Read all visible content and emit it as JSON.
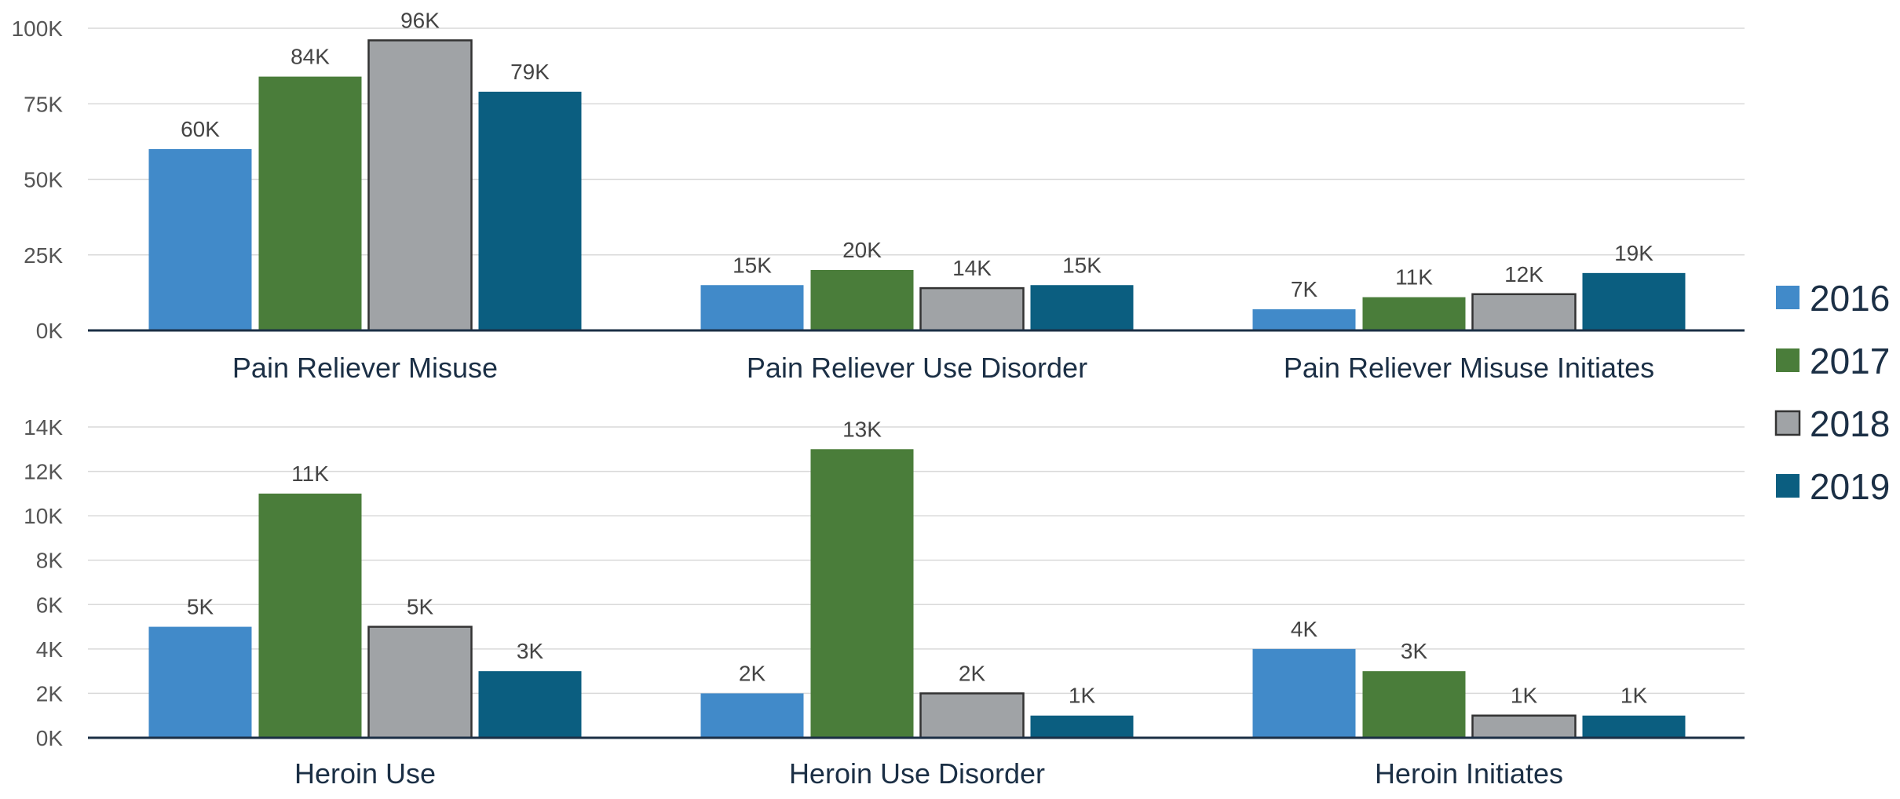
{
  "chart_data": {
    "type": "bar",
    "legend": {
      "placement": "right",
      "series": [
        {
          "name": "2016",
          "color": "#418AC9"
        },
        {
          "name": "2017",
          "color": "#4A7D3A"
        },
        {
          "name": "2018",
          "color": "#A0A3A6"
        },
        {
          "name": "2019",
          "color": "#0B5E80"
        }
      ]
    },
    "grid": true,
    "panels": [
      {
        "ylim": [
          0,
          100000
        ],
        "yticks": [
          0,
          25000,
          50000,
          75000,
          100000
        ],
        "ytick_labels": [
          "0K",
          "25K",
          "50K",
          "75K",
          "100K"
        ],
        "categories": [
          "Pain Reliever Misuse",
          "Pain Reliever Use Disorder",
          "Pain Reliever Misuse Initiates"
        ],
        "values": [
          [
            60000,
            84000,
            96000,
            79000
          ],
          [
            15000,
            20000,
            14000,
            15000
          ],
          [
            7000,
            11000,
            12000,
            19000
          ]
        ],
        "labels": [
          [
            "60K",
            "84K",
            "96K",
            "79K"
          ],
          [
            "15K",
            "20K",
            "14K",
            "15K"
          ],
          [
            "7K",
            "11K",
            "12K",
            "19K"
          ]
        ]
      },
      {
        "ylim": [
          0,
          14000
        ],
        "yticks": [
          0,
          2000,
          4000,
          6000,
          8000,
          10000,
          12000,
          14000
        ],
        "ytick_labels": [
          "0K",
          "2K",
          "4K",
          "6K",
          "8K",
          "10K",
          "12K",
          "14K"
        ],
        "categories": [
          "Heroin Use",
          "Heroin Use Disorder",
          "Heroin Initiates"
        ],
        "values": [
          [
            5000,
            11000,
            5000,
            3000
          ],
          [
            2000,
            13000,
            2000,
            1000
          ],
          [
            4000,
            3000,
            1000,
            1000
          ]
        ],
        "labels": [
          [
            "5K",
            "11K",
            "5K",
            "3K"
          ],
          [
            "2K",
            "13K",
            "2K",
            "1K"
          ],
          [
            "4K",
            "3K",
            "1K",
            "1K"
          ]
        ]
      }
    ]
  }
}
